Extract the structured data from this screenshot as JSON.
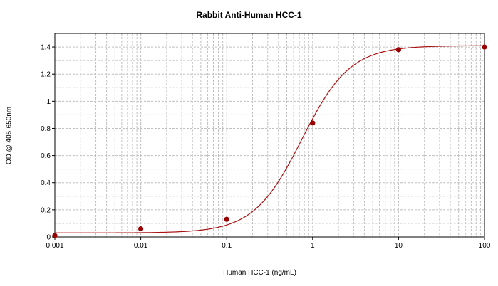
{
  "chart_data": {
    "type": "scatter",
    "title": "Rabbit Anti-Human HCC-1",
    "xlabel": "Human HCC-1 (ng/mL)",
    "ylabel": "OD @ 405-650nm",
    "xscale": "log",
    "xlim": [
      0.001,
      100
    ],
    "ylim": [
      0,
      1.5
    ],
    "x_ticks": [
      "0.001",
      "0.01",
      "0.1",
      "1",
      "10",
      "100"
    ],
    "y_ticks": [
      "0",
      "0.2",
      "0.4",
      "0.6",
      "0.8",
      "1",
      "1.2",
      "1.4"
    ],
    "grid": true,
    "legend": "none",
    "series": [
      {
        "points": [
          {
            "x": 0.001,
            "y": 0.01
          },
          {
            "x": 0.01,
            "y": 0.06
          },
          {
            "x": 0.1,
            "y": 0.13
          },
          {
            "x": 1,
            "y": 0.84
          },
          {
            "x": 10,
            "y": 1.38
          },
          {
            "x": 100,
            "y": 1.4
          }
        ],
        "fit": {
          "model": "4PL",
          "bottom": 0.03,
          "top": 1.41,
          "ec50": 0.75,
          "hill": 1.55
        }
      }
    ],
    "colors": {
      "marker": "#990000",
      "line": "#aa1111",
      "grid": "#bfbfbf"
    }
  }
}
